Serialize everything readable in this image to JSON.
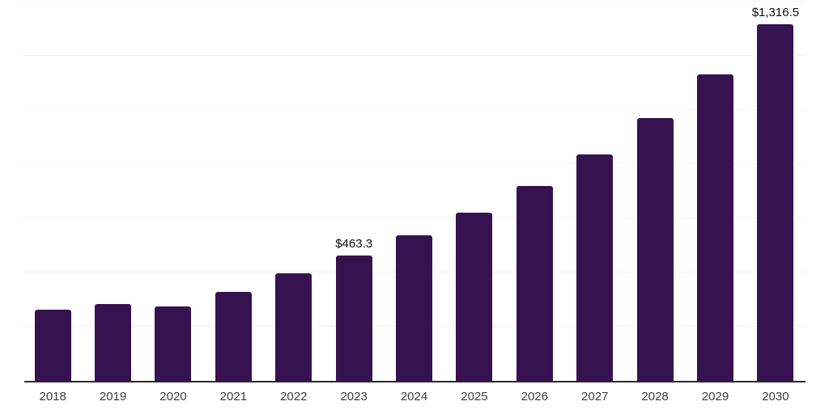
{
  "chart_data": {
    "type": "bar",
    "title": "",
    "xlabel": "",
    "ylabel": "",
    "categories": [
      "2018",
      "2019",
      "2020",
      "2021",
      "2022",
      "2023",
      "2024",
      "2025",
      "2026",
      "2027",
      "2028",
      "2029",
      "2030"
    ],
    "values": [
      263,
      285,
      274,
      329,
      398,
      463.3,
      538,
      621,
      719,
      836,
      970,
      1131,
      1316.5
    ],
    "data_labels": [
      "",
      "",
      "",
      "",
      "",
      "$463.3",
      "",
      "",
      "",
      "",
      "",
      "",
      "$1,316.5"
    ],
    "ylim": [
      0,
      1400
    ],
    "gridline_step": 200,
    "grid": "horizontal-only",
    "legend_position": "none",
    "y_tick_labels_visible": false,
    "colors": {
      "bar": "#371250",
      "grid": "#f2f2f2",
      "axis": "#2b2b2b",
      "tick_label": "#3c3c3c",
      "data_label": "#0f0f0f"
    }
  }
}
